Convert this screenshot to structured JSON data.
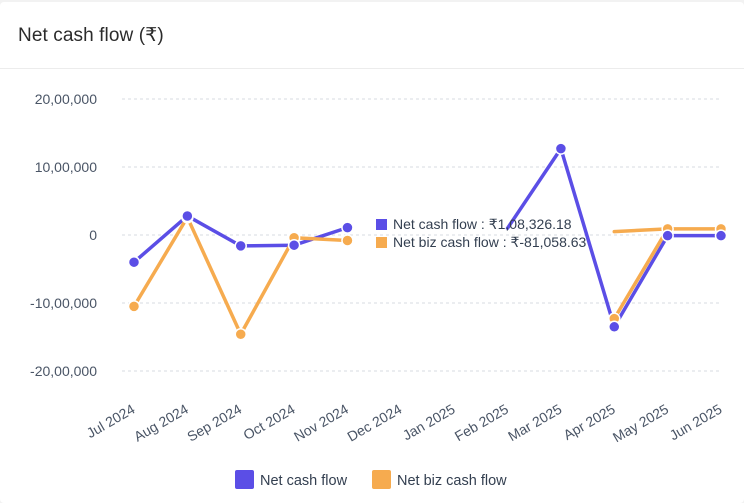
{
  "title": "Net cash flow (₹)",
  "colors": {
    "net": "#5b4ee6",
    "biz": "#f6ab4f",
    "grid": "#d7dbe0"
  },
  "legend": [
    {
      "label": "Net cash flow",
      "color": "#5b4ee6"
    },
    {
      "label": "Net biz cash flow",
      "color": "#f6ab4f"
    }
  ],
  "tooltip": {
    "net_label": "Net cash flow : ₹1,08,326.18",
    "biz_label": "Net biz cash flow : ₹-81,058.63"
  },
  "chart_data": {
    "type": "line",
    "title": "Net cash flow (₹)",
    "categories": [
      "Jul 2024",
      "Aug 2024",
      "Sep 2024",
      "Oct 2024",
      "Nov 2024",
      "Dec 2024",
      "Jan 2025",
      "Feb 2025",
      "Mar 2025",
      "Apr 2025",
      "May 2025",
      "Jun 2025"
    ],
    "ylim": [
      -2000000,
      2000000
    ],
    "yticks": [
      2000000,
      1000000,
      0,
      -1000000,
      -2000000
    ],
    "ytick_labels": [
      "20,00,000",
      "10,00,000",
      "0",
      "-10,00,000",
      "-20,00,000"
    ],
    "grid": true,
    "legend_position": "bottom",
    "series": [
      {
        "name": "Net cash flow",
        "color": "#5b4ee6",
        "values": [
          -400000,
          280000,
          -160000,
          -150000,
          108326.18,
          null,
          null,
          null,
          1270000,
          -1350000,
          -10000,
          -10000
        ]
      },
      {
        "name": "Net biz cash flow",
        "color": "#f6ab4f",
        "values": [
          -1050000,
          260000,
          -1460000,
          -40000,
          -81058.63,
          null,
          null,
          null,
          null,
          -1230000,
          90000,
          90000
        ]
      }
    ],
    "hidden_segments": [
      {
        "series": "Net cash flow",
        "from_x": 5,
        "to_x": 7,
        "to_value": 100000
      },
      {
        "series": "Net biz cash flow",
        "from_x": 7,
        "to_x": 9,
        "to_value": 50000
      }
    ]
  }
}
